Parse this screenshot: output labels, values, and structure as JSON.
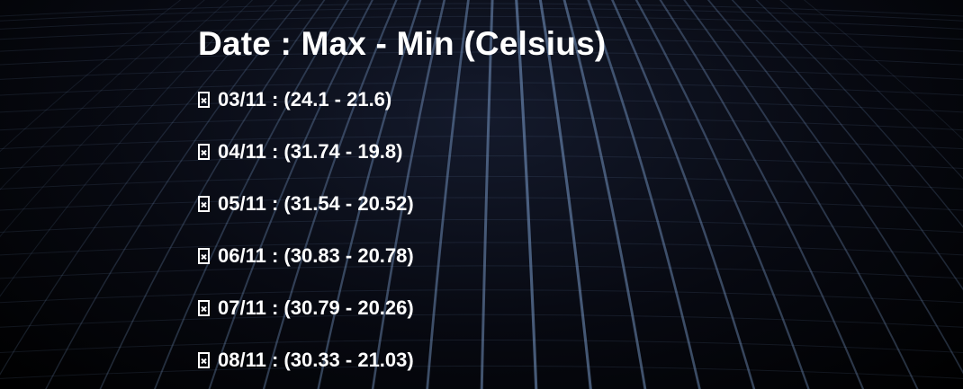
{
  "heading": "Date : Max - Min (Celsius)",
  "forecast": [
    {
      "date": "03/11",
      "range": "(24.1 - 21.6)"
    },
    {
      "date": "04/11",
      "range": "(31.74 - 19.8)"
    },
    {
      "date": "05/11",
      "range": "(31.54 - 20.52)"
    },
    {
      "date": "06/11",
      "range": "(30.83 - 20.78)"
    },
    {
      "date": "07/11",
      "range": "(30.79 - 20.26)"
    },
    {
      "date": "08/11",
      "range": "(30.33 - 21.03)"
    }
  ],
  "separator": " : ",
  "icons": {
    "row_glyph": "missing-glyph-icon"
  },
  "colors": {
    "text": "#ffffff",
    "background": "#000000",
    "grid": "#7a9bc9"
  }
}
